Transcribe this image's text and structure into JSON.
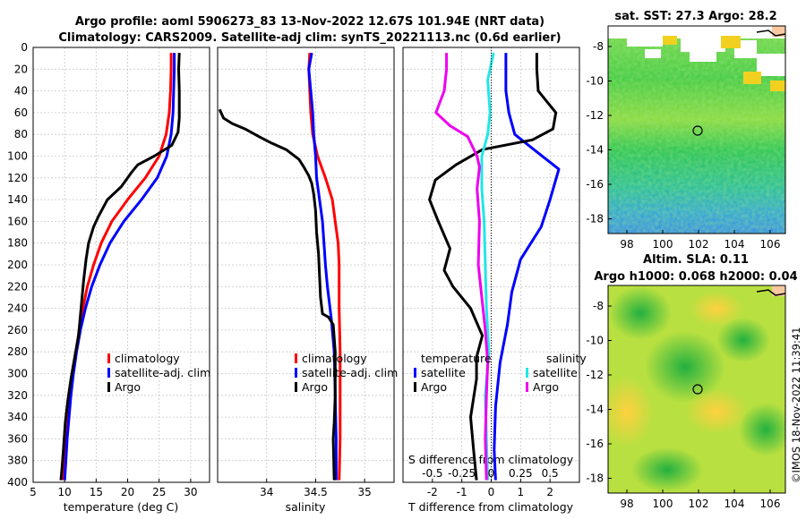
{
  "colors": {
    "climatology": "#ff0000",
    "satellite": "#0000ff",
    "argo": "#000000",
    "sat_s": "#22e6e6",
    "argo_s": "#ee00ee"
  },
  "header": {
    "line1": "Argo profile: aoml 5906273_83 13-Nov-2022 12.67S 101.94E (NRT data)",
    "line2": "Climatology: CARS2009. Satellite-adj clim: synTS_20221113.nc (0.6d earlier)"
  },
  "sst_map": {
    "title": "sat. SST: 27.3 Argo: 28.2",
    "xticks": [
      "98",
      "100",
      "102",
      "104",
      "106"
    ],
    "yticks": [
      "-8",
      "-10",
      "-12",
      "-14",
      "-16",
      "-18"
    ]
  },
  "sla_map": {
    "title1": "Altim. SLA: 0.11",
    "title2": "Argo h1000: 0.068 h2000: 0.04",
    "xticks": [
      "98",
      "100",
      "102",
      "104",
      "106"
    ],
    "yticks": [
      "-8",
      "-10",
      "-12",
      "-14",
      "-16",
      "-18"
    ]
  },
  "credit": "©IMOS 18-Nov-2022 11:39:41",
  "chart_data": [
    {
      "type": "line",
      "name": "temperature",
      "xlabel": "temperature (deg C)",
      "ylabel": "",
      "xlim": [
        5,
        33
      ],
      "ylim": [
        400,
        0
      ],
      "xticks": [
        "5",
        "10",
        "15",
        "20",
        "25",
        "30"
      ],
      "yticks": [
        "0",
        "20",
        "40",
        "60",
        "80",
        "100",
        "120",
        "140",
        "160",
        "180",
        "200",
        "220",
        "240",
        "260",
        "280",
        "300",
        "320",
        "340",
        "360",
        "380",
        "400"
      ],
      "legend": [
        "climatology",
        "satellite-adj. clim",
        "Argo"
      ],
      "series": [
        {
          "name": "climatology",
          "points": [
            [
              26.9,
              5
            ],
            [
              26.9,
              20
            ],
            [
              26.8,
              40
            ],
            [
              26.6,
              60
            ],
            [
              26.1,
              80
            ],
            [
              25,
              100
            ],
            [
              22.8,
              120
            ],
            [
              20,
              140
            ],
            [
              17.5,
              160
            ],
            [
              15.8,
              180
            ],
            [
              14.6,
              200
            ],
            [
              13.6,
              220
            ],
            [
              12.9,
              240
            ],
            [
              12.3,
              260
            ],
            [
              11.8,
              280
            ],
            [
              11.3,
              300
            ],
            [
              10.9,
              320
            ],
            [
              10.6,
              340
            ],
            [
              10.3,
              360
            ],
            [
              10,
              380
            ],
            [
              9.8,
              398
            ]
          ]
        },
        {
          "name": "satellite-adj. clim",
          "points": [
            [
              27.4,
              5
            ],
            [
              27.4,
              20
            ],
            [
              27.3,
              40
            ],
            [
              27.2,
              60
            ],
            [
              26.9,
              80
            ],
            [
              26.2,
              100
            ],
            [
              24.7,
              120
            ],
            [
              22.2,
              140
            ],
            [
              19.4,
              160
            ],
            [
              17.2,
              180
            ],
            [
              15.6,
              200
            ],
            [
              14.3,
              220
            ],
            [
              13.3,
              240
            ],
            [
              12.5,
              260
            ],
            [
              11.9,
              280
            ],
            [
              11.4,
              300
            ],
            [
              11,
              320
            ],
            [
              10.7,
              340
            ],
            [
              10.4,
              360
            ],
            [
              10.2,
              380
            ],
            [
              10,
              398
            ]
          ]
        },
        {
          "name": "Argo",
          "points": [
            [
              28.2,
              5
            ],
            [
              28.1,
              20
            ],
            [
              28.2,
              40
            ],
            [
              28.2,
              65
            ],
            [
              28,
              78
            ],
            [
              27,
              90
            ],
            [
              24.2,
              100
            ],
            [
              21.6,
              108
            ],
            [
              20.6,
              115
            ],
            [
              19,
              128
            ],
            [
              16.8,
              140
            ],
            [
              15.4,
              155
            ],
            [
              14.6,
              165
            ],
            [
              13.8,
              180
            ],
            [
              13.4,
              195
            ],
            [
              13,
              215
            ],
            [
              12.6,
              240
            ],
            [
              12.2,
              265
            ],
            [
              11.6,
              285
            ],
            [
              11,
              305
            ],
            [
              10.5,
              325
            ],
            [
              10.1,
              345
            ],
            [
              9.8,
              370
            ],
            [
              9.6,
              385
            ],
            [
              9.4,
              398
            ]
          ]
        }
      ]
    },
    {
      "type": "line",
      "name": "salinity",
      "xlabel": "salinity",
      "xlim": [
        33.5,
        35.3
      ],
      "ylim": [
        400,
        0
      ],
      "xticks": [
        "34",
        "34.5",
        "35"
      ],
      "legend": [
        "climatology",
        "satellite-adj. clim",
        "Argo"
      ],
      "series": [
        {
          "name": "climatology",
          "points": [
            [
              34.44,
              5
            ],
            [
              34.43,
              20
            ],
            [
              34.44,
              40
            ],
            [
              34.45,
              60
            ],
            [
              34.47,
              80
            ],
            [
              34.52,
              100
            ],
            [
              34.6,
              120
            ],
            [
              34.67,
              140
            ],
            [
              34.7,
              160
            ],
            [
              34.73,
              180
            ],
            [
              34.74,
              200
            ],
            [
              34.74,
              240
            ],
            [
              34.75,
              280
            ],
            [
              34.75,
              320
            ],
            [
              34.75,
              360
            ],
            [
              34.74,
              398
            ]
          ]
        },
        {
          "name": "satellite-adj. clim",
          "points": [
            [
              34.46,
              5
            ],
            [
              34.43,
              20
            ],
            [
              34.45,
              40
            ],
            [
              34.47,
              60
            ],
            [
              34.48,
              80
            ],
            [
              34.5,
              100
            ],
            [
              34.51,
              120
            ],
            [
              34.54,
              140
            ],
            [
              34.57,
              160
            ],
            [
              34.6,
              200
            ],
            [
              34.62,
              220
            ],
            [
              34.66,
              250
            ],
            [
              34.69,
              280
            ],
            [
              34.7,
              320
            ],
            [
              34.71,
              360
            ],
            [
              34.71,
              398
            ]
          ]
        },
        {
          "name": "Argo",
          "points": [
            [
              33.52,
              57
            ],
            [
              33.56,
              65
            ],
            [
              33.65,
              70
            ],
            [
              33.78,
              75
            ],
            [
              33.92,
              82
            ],
            [
              34.05,
              88
            ],
            [
              34.2,
              94
            ],
            [
              34.33,
              103
            ],
            [
              34.38,
              110
            ],
            [
              34.43,
              118
            ],
            [
              34.46,
              125
            ],
            [
              34.48,
              135
            ],
            [
              34.5,
              150
            ],
            [
              34.51,
              170
            ],
            [
              34.53,
              190
            ],
            [
              34.54,
              210
            ],
            [
              34.55,
              230
            ],
            [
              34.57,
              245
            ],
            [
              34.63,
              248
            ],
            [
              34.68,
              255
            ],
            [
              34.7,
              280
            ],
            [
              34.7,
              320
            ],
            [
              34.69,
              345
            ],
            [
              34.68,
              360
            ],
            [
              34.69,
              398
            ]
          ]
        }
      ]
    },
    {
      "type": "line",
      "name": "difference",
      "xlabel": "T difference from climatology",
      "xlabel_top": "S difference from climatology",
      "xlim": [
        -3,
        3
      ],
      "ylim": [
        400,
        0
      ],
      "xticks": [
        "-2",
        "-1",
        "0",
        "1",
        "2"
      ],
      "xticks_top": [
        "-0.5",
        "-0.25",
        "0",
        "0.25",
        "0.5"
      ],
      "legend_headers": [
        "temperature",
        "salinity"
      ],
      "legend_left": [
        "satellite",
        "Argo"
      ],
      "legend_right": [
        "satellite",
        "Argo"
      ],
      "series": [
        {
          "name": "temperature satellite",
          "points": [
            [
              0.5,
              5
            ],
            [
              0.5,
              20
            ],
            [
              0.5,
              40
            ],
            [
              0.6,
              60
            ],
            [
              0.8,
              80
            ],
            [
              1.5,
              95
            ],
            [
              2.3,
              112
            ],
            [
              2,
              140
            ],
            [
              1.7,
              165
            ],
            [
              1,
              195
            ],
            [
              0.7,
              225
            ],
            [
              0.55,
              255
            ],
            [
              0.3,
              290
            ],
            [
              0.15,
              330
            ],
            [
              0.1,
              370
            ],
            [
              0.15,
              398
            ]
          ]
        },
        {
          "name": "temperature Argo",
          "points": [
            [
              1.55,
              5
            ],
            [
              1.55,
              20
            ],
            [
              1.6,
              40
            ],
            [
              2.2,
              60
            ],
            [
              2.1,
              75
            ],
            [
              1.4,
              85
            ],
            [
              -0.3,
              94
            ],
            [
              -1.2,
              108
            ],
            [
              -1.9,
              122
            ],
            [
              -2.1,
              140
            ],
            [
              -1.8,
              160
            ],
            [
              -1.4,
              185
            ],
            [
              -1.6,
              205
            ],
            [
              -1.3,
              220
            ],
            [
              -0.7,
              240
            ],
            [
              -0.3,
              265
            ],
            [
              -0.5,
              285
            ],
            [
              -0.5,
              305
            ],
            [
              -0.7,
              340
            ],
            [
              -0.6,
              370
            ],
            [
              -0.5,
              398
            ]
          ]
        },
        {
          "name": "salinity satellite",
          "points": [
            [
              0.02,
              5
            ],
            [
              -0.03,
              30
            ],
            [
              -0.01,
              60
            ],
            [
              -0.03,
              80
            ],
            [
              -0.08,
              100
            ],
            [
              -0.08,
              130
            ],
            [
              -0.06,
              160
            ],
            [
              -0.05,
              200
            ],
            [
              -0.04,
              240
            ],
            [
              -0.02,
              280
            ],
            [
              -0.05,
              320
            ],
            [
              -0.04,
              360
            ],
            [
              -0.03,
              398
            ]
          ]
        },
        {
          "name": "salinity Argo",
          "points": [
            [
              -0.38,
              5
            ],
            [
              -0.38,
              20
            ],
            [
              -0.4,
              40
            ],
            [
              -0.47,
              60
            ],
            [
              -0.35,
              72
            ],
            [
              -0.2,
              82
            ],
            [
              -0.12,
              100
            ],
            [
              -0.1,
              110
            ],
            [
              -0.12,
              130
            ],
            [
              -0.1,
              160
            ],
            [
              -0.11,
              200
            ],
            [
              -0.08,
              230
            ],
            [
              -0.05,
              260
            ],
            [
              -0.03,
              290
            ],
            [
              -0.04,
              320
            ],
            [
              -0.05,
              360
            ],
            [
              -0.04,
              398
            ]
          ]
        }
      ]
    }
  ]
}
